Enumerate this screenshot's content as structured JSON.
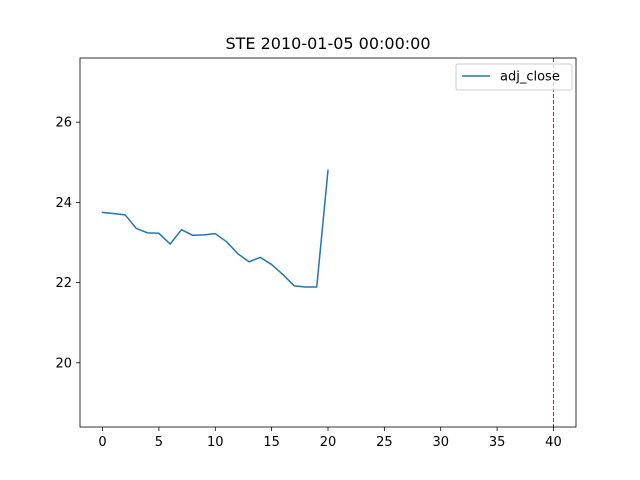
{
  "chart_data": {
    "type": "line",
    "title": "STE 2010-01-05 00:00:00",
    "xlabel": "",
    "ylabel": "",
    "xlim": [
      -2,
      42
    ],
    "ylim": [
      18.4,
      27.6
    ],
    "xticks": [
      0,
      5,
      10,
      15,
      20,
      25,
      30,
      35,
      40
    ],
    "yticks": [
      20,
      22,
      24,
      26
    ],
    "grid": false,
    "legend": {
      "position": "top-right",
      "entries": [
        "adj_close"
      ]
    },
    "series": [
      {
        "name": "adj_close",
        "color": "#1f77b4",
        "x": [
          0,
          1,
          2,
          3,
          4,
          5,
          6,
          7,
          8,
          9,
          10,
          11,
          12,
          13,
          14,
          15,
          16,
          17,
          18,
          19,
          20
        ],
        "values": [
          23.75,
          23.72,
          23.69,
          23.35,
          23.24,
          23.23,
          22.96,
          23.32,
          23.18,
          23.19,
          23.22,
          23.02,
          22.72,
          22.52,
          22.63,
          22.45,
          22.2,
          21.92,
          21.89,
          21.89,
          24.8
        ]
      }
    ],
    "annotations": [
      {
        "type": "vline",
        "x": 40,
        "color": "#ff0000",
        "style": "dashed"
      }
    ]
  }
}
